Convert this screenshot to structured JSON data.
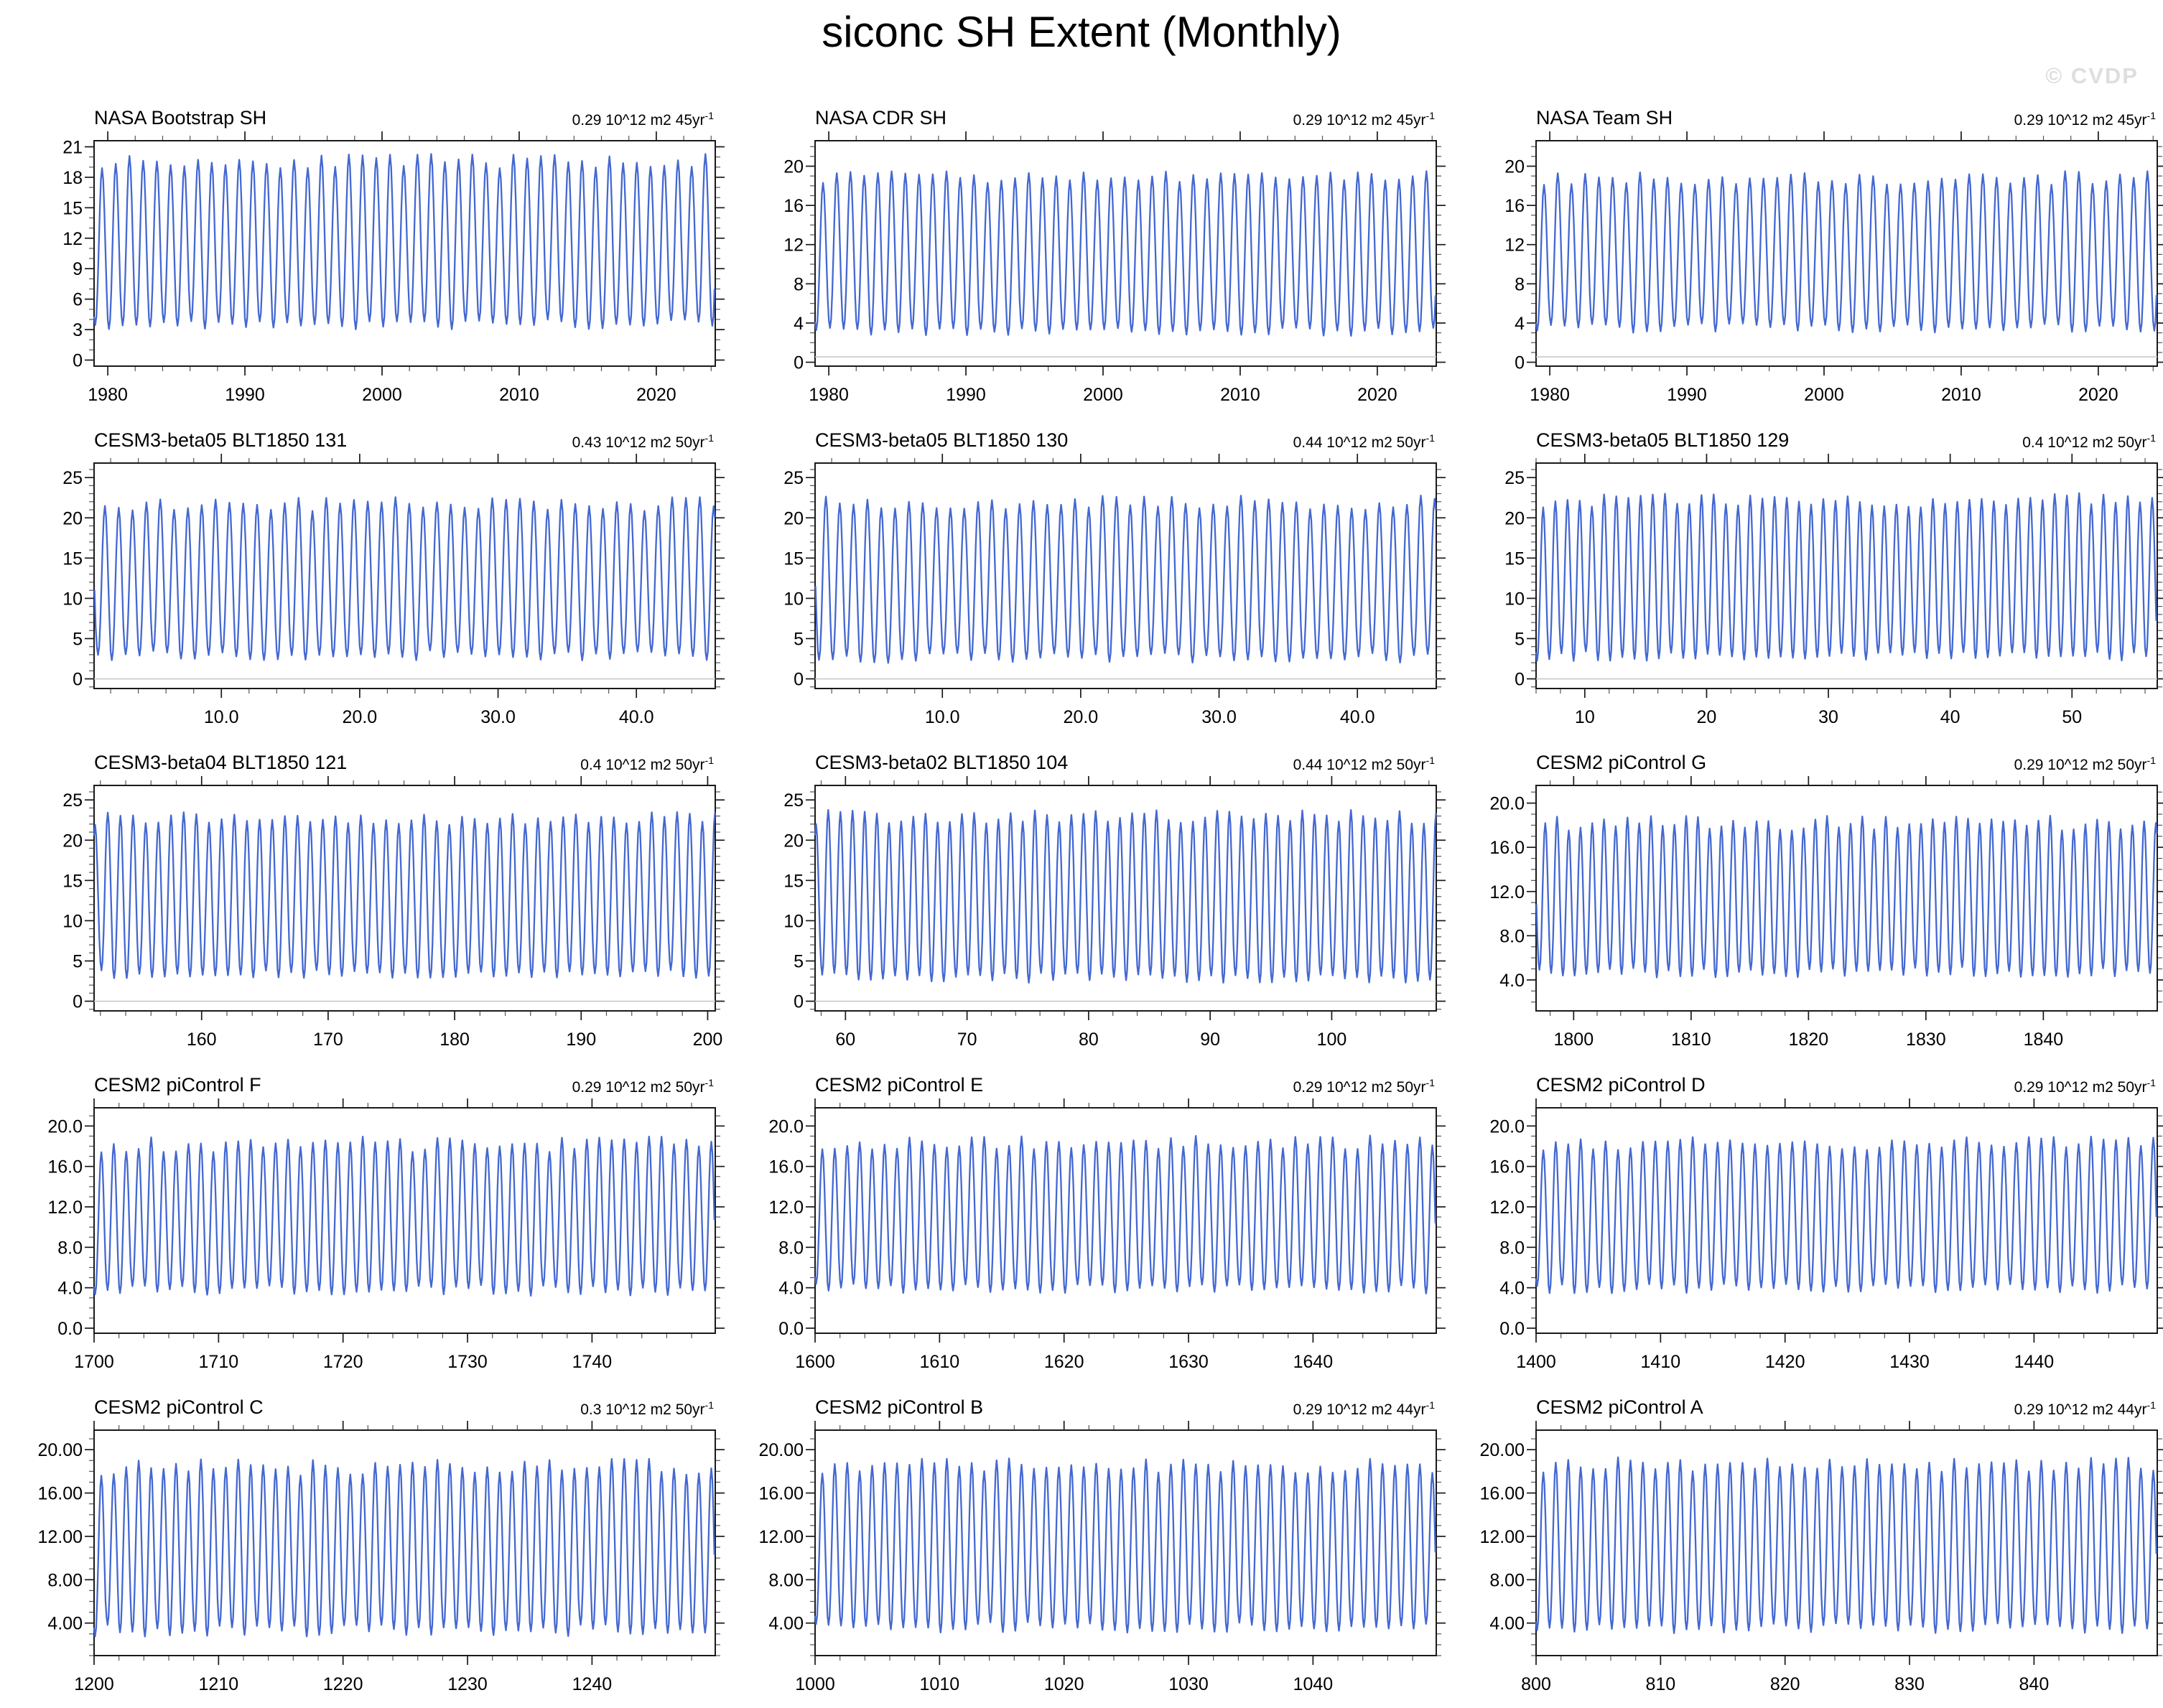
{
  "page": {
    "title": "siconc SH Extent (Monthly)",
    "watermark": "© CVDP"
  },
  "colors": {
    "line": "#4468d1",
    "frame": "#1a1a1a",
    "major_tick": "#1a1a1a",
    "minor_tick": "#555555",
    "baseline": "#c9c9c9",
    "label": "#000000",
    "watermark": "#dedede"
  },
  "panels": [
    {
      "title": "NASA Bootstrap SH",
      "trend": "0.29 10^12 m2 45yr",
      "trend_sup": "-1"
    },
    {
      "title": "NASA CDR SH",
      "trend": "0.29 10^12 m2 45yr",
      "trend_sup": "-1"
    },
    {
      "title": "NASA Team SH",
      "trend": "0.29 10^12 m2 45yr",
      "trend_sup": "-1"
    },
    {
      "title": "CESM3-beta05 BLT1850 131",
      "trend": "0.43 10^12 m2 50yr",
      "trend_sup": "-1"
    },
    {
      "title": "CESM3-beta05 BLT1850 130",
      "trend": "0.44 10^12 m2 50yr",
      "trend_sup": "-1"
    },
    {
      "title": "CESM3-beta05 BLT1850 129",
      "trend": "0.4 10^12 m2 50yr",
      "trend_sup": "-1"
    },
    {
      "title": "CESM3-beta04 BLT1850 121",
      "trend": "0.4 10^12 m2 50yr",
      "trend_sup": "-1"
    },
    {
      "title": "CESM3-beta02 BLT1850 104",
      "trend": "0.44 10^12 m2 50yr",
      "trend_sup": "-1"
    },
    {
      "title": "CESM2 piControl G",
      "trend": "0.29 10^12 m2 50yr",
      "trend_sup": "-1"
    },
    {
      "title": "CESM2 piControl F",
      "trend": "0.29 10^12 m2 50yr",
      "trend_sup": "-1"
    },
    {
      "title": "CESM2 piControl E",
      "trend": "0.29 10^12 m2 50yr",
      "trend_sup": "-1"
    },
    {
      "title": "CESM2 piControl D",
      "trend": "0.29 10^12 m2 50yr",
      "trend_sup": "-1"
    },
    {
      "title": "CESM2 piControl C",
      "trend": "0.3 10^12 m2 50yr",
      "trend_sup": "-1"
    },
    {
      "title": "CESM2 piControl B",
      "trend": "0.29 10^12 m2 44yr",
      "trend_sup": "-1"
    },
    {
      "title": "CESM2 piControl A",
      "trend": "0.29 10^12 m2 44yr",
      "trend_sup": "-1"
    }
  ],
  "chart_data": [
    {
      "type": "line",
      "title": "NASA Bootstrap SH",
      "annotation": "0.29 10^12 m2 45yr-1",
      "x_start": 1979,
      "x_end": 2024.3,
      "xticks": [
        1980,
        1990,
        2000,
        2010,
        2020
      ],
      "xtick_labels": [
        "1980",
        "1990",
        "2000",
        "2010",
        "2020"
      ],
      "x_minor_step": 2,
      "ylim": [
        -0.6,
        21.6
      ],
      "yticks": [
        0,
        3,
        6,
        9,
        12,
        15,
        18,
        21
      ],
      "ytick_labels": [
        "0",
        "3",
        "6",
        "9",
        "12",
        "15",
        "18",
        "21"
      ],
      "y_minor_step": 1,
      "annual_min": 3.5,
      "annual_max": 19.6,
      "jitter": 0.7,
      "seed": 11,
      "baseline": null,
      "series_note": "monthly SH sea-ice extent seasonal cycle, min ~3.5 (Feb), max ~19.6 (Sep)"
    },
    {
      "type": "line",
      "title": "NASA CDR SH",
      "annotation": "0.29 10^12 m2 45yr-1",
      "x_start": 1979,
      "x_end": 2024.3,
      "xticks": [
        1980,
        1990,
        2000,
        2010,
        2020
      ],
      "xtick_labels": [
        "1980",
        "1990",
        "2000",
        "2010",
        "2020"
      ],
      "x_minor_step": 2,
      "ylim": [
        -0.4,
        22.6
      ],
      "yticks": [
        0,
        4,
        8,
        12,
        16,
        20
      ],
      "ytick_labels": [
        "0",
        "4",
        "8",
        "12",
        "16",
        "20"
      ],
      "y_minor_step": 1,
      "annual_min": 3.1,
      "annual_max": 18.9,
      "jitter": 0.6,
      "seed": 13,
      "baseline": 0.55,
      "series_note": "monthly SH sea-ice extent seasonal cycle, min ~3.1, max ~18.9"
    },
    {
      "type": "line",
      "title": "NASA Team SH",
      "annotation": "0.29 10^12 m2 45yr-1",
      "x_start": 1979,
      "x_end": 2024.3,
      "xticks": [
        1980,
        1990,
        2000,
        2010,
        2020
      ],
      "xtick_labels": [
        "1980",
        "1990",
        "2000",
        "2010",
        "2020"
      ],
      "x_minor_step": 2,
      "ylim": [
        -0.4,
        22.6
      ],
      "yticks": [
        0,
        4,
        8,
        12,
        16,
        20
      ],
      "ytick_labels": [
        "0",
        "4",
        "8",
        "12",
        "16",
        "20"
      ],
      "y_minor_step": 1,
      "annual_min": 3.5,
      "annual_max": 18.8,
      "jitter": 0.7,
      "seed": 17,
      "baseline": 0.55,
      "series_note": "monthly SH sea-ice extent seasonal cycle, min ~3.5, max ~18.8"
    },
    {
      "type": "line",
      "title": "CESM3-beta05 BLT1850 131",
      "annotation": "0.43 10^12 m2 50yr-1",
      "x_start": 0.8,
      "x_end": 45.7,
      "xticks": [
        10,
        20,
        30,
        40
      ],
      "xtick_labels": [
        "10.0",
        "20.0",
        "30.0",
        "40.0"
      ],
      "x_minor_step": 2,
      "ylim": [
        -1.2,
        26.8
      ],
      "yticks": [
        0,
        5,
        10,
        15,
        20,
        25
      ],
      "ytick_labels": [
        "0",
        "5",
        "10",
        "15",
        "20",
        "25"
      ],
      "y_minor_step": 1,
      "annual_min": 2.9,
      "annual_max": 21.7,
      "jitter": 0.9,
      "seed": 23,
      "baseline": 0,
      "series_note": "monthly seasonal cycle, min ~2.9, max ~21.7"
    },
    {
      "type": "line",
      "title": "CESM3-beta05 BLT1850 130",
      "annotation": "0.44 10^12 m2 50yr-1",
      "x_start": 0.8,
      "x_end": 45.7,
      "xticks": [
        10,
        20,
        30,
        40
      ],
      "xtick_labels": [
        "10.0",
        "20.0",
        "30.0",
        "40.0"
      ],
      "x_minor_step": 2,
      "ylim": [
        -1.2,
        26.8
      ],
      "yticks": [
        0,
        5,
        10,
        15,
        20,
        25
      ],
      "ytick_labels": [
        "0",
        "5",
        "10",
        "15",
        "20",
        "25"
      ],
      "y_minor_step": 1,
      "annual_min": 2.6,
      "annual_max": 21.9,
      "jitter": 0.9,
      "seed": 29,
      "baseline": 0,
      "series_note": "monthly seasonal cycle, min ~2.6, max ~21.9"
    },
    {
      "type": "line",
      "title": "CESM3-beta05 BLT1850 129",
      "annotation": "0.4 10^12 m2 50yr-1",
      "x_start": 6,
      "x_end": 57,
      "xticks": [
        10,
        20,
        30,
        40,
        50
      ],
      "xtick_labels": [
        "10",
        "20",
        "30",
        "40",
        "50"
      ],
      "x_minor_step": 2,
      "ylim": [
        -1.2,
        26.8
      ],
      "yticks": [
        0,
        5,
        10,
        15,
        20,
        25
      ],
      "ytick_labels": [
        "0",
        "5",
        "10",
        "15",
        "20",
        "25"
      ],
      "y_minor_step": 1,
      "annual_min": 2.8,
      "annual_max": 22.2,
      "jitter": 0.9,
      "seed": 31,
      "baseline": 0,
      "series_note": "monthly seasonal cycle, min ~2.8, max ~22.2"
    },
    {
      "type": "line",
      "title": "CESM3-beta04 BLT1850 121",
      "annotation": "0.4 10^12 m2 50yr-1",
      "x_start": 151.5,
      "x_end": 200.6,
      "xticks": [
        160,
        170,
        180,
        190,
        200
      ],
      "xtick_labels": [
        "160",
        "170",
        "180",
        "190",
        "200"
      ],
      "x_minor_step": 2,
      "ylim": [
        -1.2,
        26.8
      ],
      "yticks": [
        0,
        5,
        10,
        15,
        20,
        25
      ],
      "ytick_labels": [
        "0",
        "5",
        "10",
        "15",
        "20",
        "25"
      ],
      "y_minor_step": 1,
      "annual_min": 3.3,
      "annual_max": 22.7,
      "jitter": 0.8,
      "seed": 37,
      "baseline": 0,
      "series_note": "monthly seasonal cycle, min ~3.3, max ~22.7"
    },
    {
      "type": "line",
      "title": "CESM3-beta02 BLT1850 104",
      "annotation": "0.44 10^12 m2 50yr-1",
      "x_start": 57.5,
      "x_end": 108.6,
      "xticks": [
        60,
        70,
        80,
        90,
        100
      ],
      "xtick_labels": [
        "60",
        "70",
        "80",
        "90",
        "100"
      ],
      "x_minor_step": 2,
      "ylim": [
        -1.2,
        26.8
      ],
      "yticks": [
        0,
        5,
        10,
        15,
        20,
        25
      ],
      "ytick_labels": [
        "0",
        "5",
        "10",
        "15",
        "20",
        "25"
      ],
      "y_minor_step": 1,
      "annual_min": 2.9,
      "annual_max": 22.9,
      "jitter": 0.9,
      "seed": 41,
      "baseline": 0,
      "series_note": "monthly seasonal cycle, min ~2.9, max ~22.9"
    },
    {
      "type": "line",
      "title": "CESM2 piControl G",
      "annotation": "0.29 10^12 m2 50yr-1",
      "x_start": 1796.8,
      "x_end": 1849.7,
      "xticks": [
        1800,
        1810,
        1820,
        1830,
        1840
      ],
      "xtick_labels": [
        "1800",
        "1810",
        "1820",
        "1830",
        "1840"
      ],
      "x_minor_step": 2,
      "ylim": [
        1.2,
        21.6
      ],
      "yticks": [
        4,
        8,
        12,
        16,
        20
      ],
      "ytick_labels": [
        "4.0",
        "8.0",
        "12.0",
        "16.0",
        "20.0"
      ],
      "y_minor_step": 1,
      "annual_min": 4.7,
      "annual_max": 18.2,
      "jitter": 0.7,
      "seed": 43,
      "baseline": null,
      "series_note": "monthly seasonal cycle, min ~4.7, max ~18.2"
    },
    {
      "type": "line",
      "title": "CESM2 piControl F",
      "annotation": "0.29 10^12 m2 50yr-1",
      "x_start": 1700,
      "x_end": 1749.9,
      "xticks": [
        1700,
        1710,
        1720,
        1730,
        1740
      ],
      "xtick_labels": [
        "1700",
        "1710",
        "1720",
        "1730",
        "1740"
      ],
      "x_minor_step": 2,
      "ylim": [
        -0.5,
        21.8
      ],
      "yticks": [
        0,
        4,
        8,
        12,
        16,
        20
      ],
      "ytick_labels": [
        "0.0",
        "4.0",
        "8.0",
        "12.0",
        "16.0",
        "20.0"
      ],
      "y_minor_step": 1,
      "annual_min": 3.7,
      "annual_max": 18.2,
      "jitter": 0.8,
      "seed": 47,
      "baseline": null,
      "series_note": "monthly seasonal cycle, min ~3.7, max ~18.2"
    },
    {
      "type": "line",
      "title": "CESM2 piControl E",
      "annotation": "0.29 10^12 m2 50yr-1",
      "x_start": 1600,
      "x_end": 1649.9,
      "xticks": [
        1600,
        1610,
        1620,
        1630,
        1640
      ],
      "xtick_labels": [
        "1600",
        "1610",
        "1620",
        "1630",
        "1640"
      ],
      "x_minor_step": 2,
      "ylim": [
        -0.5,
        21.8
      ],
      "yticks": [
        0,
        4,
        8,
        12,
        16,
        20
      ],
      "ytick_labels": [
        "0.0",
        "4.0",
        "8.0",
        "12.0",
        "16.0",
        "20.0"
      ],
      "y_minor_step": 1,
      "annual_min": 3.9,
      "annual_max": 18.4,
      "jitter": 0.7,
      "seed": 53,
      "baseline": null,
      "series_note": "monthly seasonal cycle, min ~3.9, max ~18.4"
    },
    {
      "type": "line",
      "title": "CESM2 piControl D",
      "annotation": "0.29 10^12 m2 50yr-1",
      "x_start": 1400,
      "x_end": 1449.9,
      "xticks": [
        1400,
        1410,
        1420,
        1430,
        1440
      ],
      "xtick_labels": [
        "1400",
        "1410",
        "1420",
        "1430",
        "1440"
      ],
      "x_minor_step": 2,
      "ylim": [
        -0.5,
        21.8
      ],
      "yticks": [
        0,
        4,
        8,
        12,
        16,
        20
      ],
      "ytick_labels": [
        "0.0",
        "4.0",
        "8.0",
        "12.0",
        "16.0",
        "20.0"
      ],
      "y_minor_step": 1,
      "annual_min": 3.9,
      "annual_max": 18.3,
      "jitter": 0.7,
      "seed": 59,
      "baseline": null,
      "series_note": "monthly seasonal cycle, min ~3.9, max ~18.3"
    },
    {
      "type": "line",
      "title": "CESM2 piControl C",
      "annotation": "0.3 10^12 m2 50yr-1",
      "x_start": 1200,
      "x_end": 1249.9,
      "xticks": [
        1200,
        1210,
        1220,
        1230,
        1240
      ],
      "xtick_labels": [
        "1200",
        "1210",
        "1220",
        "1230",
        "1240"
      ],
      "x_minor_step": 2,
      "ylim": [
        1.0,
        21.8
      ],
      "yticks": [
        4,
        8,
        12,
        16,
        20
      ],
      "ytick_labels": [
        "4.00",
        "8.00",
        "12.00",
        "16.00",
        "20.00"
      ],
      "y_minor_step": 1,
      "annual_min": 3.3,
      "annual_max": 18.4,
      "jitter": 0.8,
      "seed": 61,
      "baseline": null,
      "series_note": "monthly seasonal cycle, min ~3.3, max ~18.4"
    },
    {
      "type": "line",
      "title": "CESM2 piControl B",
      "annotation": "0.29 10^12 m2 44yr-1",
      "x_start": 1000,
      "x_end": 1049.9,
      "xticks": [
        1000,
        1010,
        1020,
        1030,
        1040
      ],
      "xtick_labels": [
        "1000",
        "1010",
        "1020",
        "1030",
        "1040"
      ],
      "x_minor_step": 2,
      "ylim": [
        1.0,
        21.8
      ],
      "yticks": [
        4,
        8,
        12,
        16,
        20
      ],
      "ytick_labels": [
        "4.00",
        "8.00",
        "12.00",
        "16.00",
        "20.00"
      ],
      "y_minor_step": 1,
      "annual_min": 3.6,
      "annual_max": 18.5,
      "jitter": 0.7,
      "seed": 67,
      "baseline": null,
      "series_note": "monthly seasonal cycle, min ~3.6, max ~18.5"
    },
    {
      "type": "line",
      "title": "CESM2 piControl A",
      "annotation": "0.29 10^12 m2 44yr-1",
      "x_start": 800,
      "x_end": 849.9,
      "xticks": [
        800,
        810,
        820,
        830,
        840
      ],
      "xtick_labels": [
        "800",
        "810",
        "820",
        "830",
        "840"
      ],
      "x_minor_step": 2,
      "ylim": [
        1.0,
        21.8
      ],
      "yticks": [
        4,
        8,
        12,
        16,
        20
      ],
      "ytick_labels": [
        "4.00",
        "8.00",
        "12.00",
        "16.00",
        "20.00"
      ],
      "y_minor_step": 1,
      "annual_min": 3.5,
      "annual_max": 18.6,
      "jitter": 0.7,
      "seed": 71,
      "baseline": null,
      "series_note": "monthly seasonal cycle, min ~3.5, max ~18.6"
    }
  ]
}
